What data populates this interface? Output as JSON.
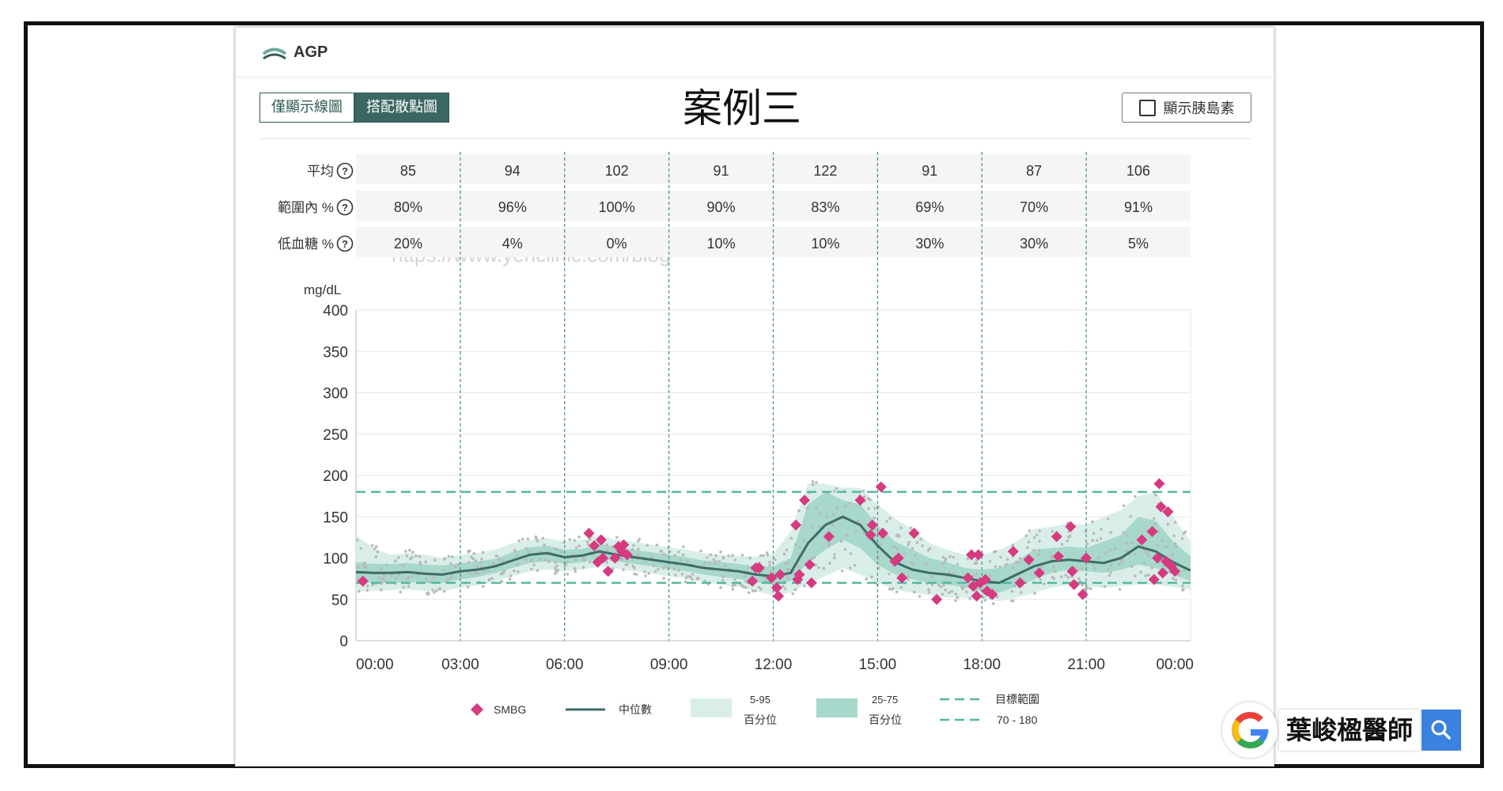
{
  "app": {
    "title": "AGP"
  },
  "toggle": {
    "line_only": "僅顯示線圖",
    "with_scatter": "搭配散點圖"
  },
  "case_title": "案例三",
  "insulin_checkbox": "顯示胰島素",
  "watermark_url": "https://www.yehclinic.com/blog",
  "brand": {
    "name": "葉峻楹醫師"
  },
  "colors": {
    "accent": "#3a6762",
    "smbg": "#d63a80",
    "band_outer": "#d9eee8",
    "band_inner": "#a7d8cb",
    "median": "#3f6b68",
    "target": "#56b7a0"
  },
  "chart_data": {
    "type": "line",
    "ylabel": "mg/dL",
    "ylim": [
      0,
      400
    ],
    "yticks": [
      0,
      50,
      100,
      150,
      200,
      250,
      300,
      350,
      400
    ],
    "xticks": [
      "00:00",
      "03:00",
      "06:00",
      "09:00",
      "12:00",
      "15:00",
      "18:00",
      "21:00",
      "00:00"
    ],
    "target_range": [
      70,
      180
    ],
    "stats": {
      "rows": [
        {
          "label": "平均",
          "values": [
            "85",
            "94",
            "102",
            "91",
            "122",
            "91",
            "87",
            "106"
          ]
        },
        {
          "label": "範圍內 %",
          "values": [
            "80%",
            "96%",
            "100%",
            "90%",
            "83%",
            "69%",
            "70%",
            "91%"
          ]
        },
        {
          "label": "低血糖 %",
          "values": [
            "20%",
            "4%",
            "0%",
            "10%",
            "10%",
            "30%",
            "30%",
            "5%"
          ]
        }
      ]
    },
    "hours": [
      0,
      0.5,
      1,
      1.5,
      2,
      2.5,
      3,
      3.5,
      4,
      4.5,
      5,
      5.5,
      6,
      6.5,
      7,
      7.5,
      8,
      8.5,
      9,
      9.5,
      10,
      10.5,
      11,
      11.5,
      12,
      12.5,
      13,
      13.5,
      14,
      14.5,
      15,
      15.5,
      16,
      16.5,
      17,
      17.5,
      18,
      18.5,
      19,
      19.5,
      20,
      20.5,
      21,
      21.5,
      22,
      22.5,
      23,
      23.5,
      24
    ],
    "median": [
      83,
      82,
      82,
      83,
      81,
      80,
      84,
      86,
      90,
      97,
      104,
      106,
      101,
      103,
      108,
      104,
      101,
      98,
      95,
      92,
      88,
      86,
      84,
      80,
      78,
      82,
      118,
      140,
      150,
      140,
      115,
      95,
      86,
      82,
      80,
      76,
      72,
      70,
      80,
      90,
      96,
      98,
      96,
      94,
      100,
      114,
      108,
      95,
      85
    ],
    "p25": [
      72,
      70,
      70,
      71,
      70,
      70,
      74,
      77,
      82,
      88,
      94,
      96,
      93,
      95,
      99,
      96,
      93,
      90,
      87,
      84,
      80,
      77,
      75,
      71,
      68,
      72,
      95,
      110,
      122,
      112,
      92,
      80,
      74,
      70,
      68,
      65,
      60,
      58,
      66,
      74,
      82,
      86,
      84,
      82,
      86,
      92,
      88,
      80,
      72
    ],
    "p75": [
      95,
      93,
      93,
      94,
      92,
      91,
      94,
      96,
      99,
      107,
      113,
      115,
      110,
      111,
      117,
      113,
      110,
      107,
      104,
      101,
      97,
      95,
      93,
      90,
      90,
      100,
      165,
      180,
      170,
      165,
      140,
      120,
      110,
      100,
      95,
      88,
      86,
      88,
      96,
      110,
      112,
      114,
      112,
      120,
      128,
      150,
      145,
      120,
      102
    ],
    "p5": [
      60,
      60,
      61,
      62,
      60,
      60,
      64,
      67,
      72,
      78,
      84,
      86,
      84,
      86,
      90,
      87,
      84,
      81,
      78,
      75,
      71,
      68,
      65,
      60,
      55,
      58,
      70,
      78,
      88,
      80,
      70,
      62,
      58,
      55,
      52,
      52,
      50,
      48,
      52,
      58,
      64,
      68,
      66,
      64,
      66,
      68,
      68,
      65,
      62
    ],
    "p95": [
      128,
      112,
      104,
      106,
      104,
      100,
      104,
      106,
      110,
      118,
      122,
      124,
      120,
      122,
      128,
      122,
      120,
      116,
      113,
      110,
      106,
      104,
      102,
      102,
      105,
      132,
      190,
      190,
      185,
      185,
      165,
      148,
      135,
      118,
      110,
      104,
      104,
      110,
      120,
      135,
      138,
      142,
      140,
      150,
      158,
      175,
      180,
      150,
      120
    ],
    "smbg": [
      {
        "x": 0.2,
        "y": 72
      },
      {
        "x": 6.7,
        "y": 130
      },
      {
        "x": 6.85,
        "y": 115
      },
      {
        "x": 6.95,
        "y": 95
      },
      {
        "x": 7.05,
        "y": 122
      },
      {
        "x": 7.1,
        "y": 100
      },
      {
        "x": 7.25,
        "y": 84
      },
      {
        "x": 7.45,
        "y": 100
      },
      {
        "x": 7.55,
        "y": 114
      },
      {
        "x": 7.65,
        "y": 108
      },
      {
        "x": 7.7,
        "y": 116
      },
      {
        "x": 7.8,
        "y": 104
      },
      {
        "x": 11.4,
        "y": 72
      },
      {
        "x": 11.5,
        "y": 88
      },
      {
        "x": 11.6,
        "y": 88
      },
      {
        "x": 11.95,
        "y": 76
      },
      {
        "x": 12.1,
        "y": 64
      },
      {
        "x": 12.15,
        "y": 54
      },
      {
        "x": 12.2,
        "y": 80
      },
      {
        "x": 12.65,
        "y": 140
      },
      {
        "x": 12.7,
        "y": 74
      },
      {
        "x": 12.75,
        "y": 80
      },
      {
        "x": 12.9,
        "y": 170
      },
      {
        "x": 13.05,
        "y": 92
      },
      {
        "x": 13.1,
        "y": 70
      },
      {
        "x": 13.6,
        "y": 126
      },
      {
        "x": 14.5,
        "y": 170
      },
      {
        "x": 14.8,
        "y": 128
      },
      {
        "x": 14.85,
        "y": 140
      },
      {
        "x": 15.1,
        "y": 186
      },
      {
        "x": 15.15,
        "y": 130
      },
      {
        "x": 15.5,
        "y": 96
      },
      {
        "x": 15.6,
        "y": 100
      },
      {
        "x": 15.7,
        "y": 76
      },
      {
        "x": 16.05,
        "y": 130
      },
      {
        "x": 16.7,
        "y": 50
      },
      {
        "x": 17.6,
        "y": 76
      },
      {
        "x": 17.7,
        "y": 104
      },
      {
        "x": 17.75,
        "y": 66
      },
      {
        "x": 17.85,
        "y": 54
      },
      {
        "x": 17.9,
        "y": 104
      },
      {
        "x": 17.95,
        "y": 70
      },
      {
        "x": 18.1,
        "y": 74
      },
      {
        "x": 18.15,
        "y": 60
      },
      {
        "x": 18.3,
        "y": 56
      },
      {
        "x": 18.9,
        "y": 108
      },
      {
        "x": 19.1,
        "y": 70
      },
      {
        "x": 19.35,
        "y": 98
      },
      {
        "x": 19.65,
        "y": 82
      },
      {
        "x": 20.15,
        "y": 126
      },
      {
        "x": 20.2,
        "y": 102
      },
      {
        "x": 20.55,
        "y": 138
      },
      {
        "x": 20.6,
        "y": 84
      },
      {
        "x": 20.65,
        "y": 68
      },
      {
        "x": 20.9,
        "y": 56
      },
      {
        "x": 21.0,
        "y": 100
      },
      {
        "x": 22.6,
        "y": 122
      },
      {
        "x": 22.9,
        "y": 132
      },
      {
        "x": 22.95,
        "y": 74
      },
      {
        "x": 23.05,
        "y": 100
      },
      {
        "x": 23.1,
        "y": 190
      },
      {
        "x": 23.15,
        "y": 162
      },
      {
        "x": 23.2,
        "y": 82
      },
      {
        "x": 23.3,
        "y": 96
      },
      {
        "x": 23.35,
        "y": 156
      },
      {
        "x": 23.45,
        "y": 90
      },
      {
        "x": 23.55,
        "y": 84
      }
    ]
  },
  "legend": {
    "smbg": "SMBG",
    "median": "中位數",
    "p5_95_top": "5-95",
    "p5_95_bottom": "百分位",
    "p25_75_top": "25-75",
    "p25_75_bottom": "百分位",
    "target_top": "目標範圍",
    "target_bottom": "70 - 180"
  }
}
